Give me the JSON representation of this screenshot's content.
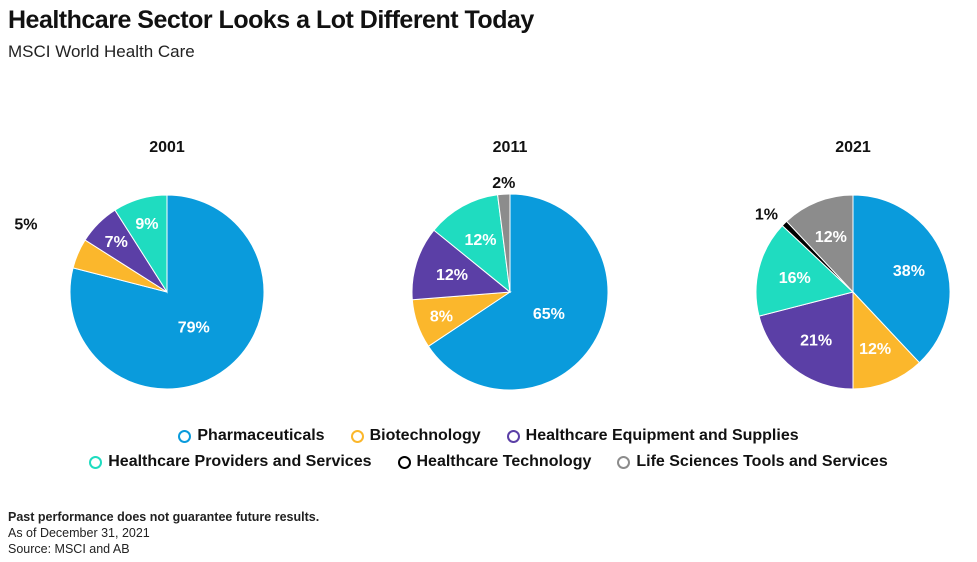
{
  "header": {
    "title": "Healthcare Sector Looks a Lot Different Today",
    "subtitle": "MSCI World Health Care"
  },
  "legend": {
    "row1": [
      {
        "label": "Pharmaceuticals",
        "color": "#0a9bdc"
      },
      {
        "label": "Biotechnology",
        "color": "#fbb72c"
      },
      {
        "label": "Healthcare Equipment and Supplies",
        "color": "#5b3fa6"
      }
    ],
    "row2": [
      {
        "label": "Healthcare Providers and Services",
        "color": "#1fdcc0"
      },
      {
        "label": "Healthcare Technology",
        "color": "#000000"
      },
      {
        "label": "Life Sciences Tools and Services",
        "color": "#8c8c8c"
      }
    ]
  },
  "footer": {
    "disclaimer": "Past performance does not guarantee future results.",
    "date": "As of December 31, 2021",
    "source": "Source: MSCI and AB"
  },
  "chart_data": [
    {
      "type": "pie",
      "title": "2001",
      "slices": [
        {
          "name": "Pharmaceuticals",
          "value": 79,
          "label": "79%",
          "color": "#0a9bdc"
        },
        {
          "name": "Biotechnology",
          "value": 5,
          "label": "5%",
          "color": "#fbb72c"
        },
        {
          "name": "Healthcare Equipment and Supplies",
          "value": 7,
          "label": "7%",
          "color": "#5b3fa6"
        },
        {
          "name": "Healthcare Providers and Services",
          "value": 9,
          "label": "9%",
          "color": "#1fdcc0"
        }
      ]
    },
    {
      "type": "pie",
      "title": "2011",
      "slices": [
        {
          "name": "Pharmaceuticals",
          "value": 65,
          "label": "65%",
          "color": "#0a9bdc"
        },
        {
          "name": "Biotechnology",
          "value": 8,
          "label": "8%",
          "color": "#fbb72c"
        },
        {
          "name": "Healthcare Equipment and Supplies",
          "value": 12,
          "label": "12%",
          "color": "#5b3fa6"
        },
        {
          "name": "Healthcare Providers and Services",
          "value": 12,
          "label": "12%",
          "color": "#1fdcc0"
        },
        {
          "name": "Life Sciences Tools and Services",
          "value": 2,
          "label": "2%",
          "color": "#8c8c8c"
        }
      ]
    },
    {
      "type": "pie",
      "title": "2021",
      "slices": [
        {
          "name": "Pharmaceuticals",
          "value": 38,
          "label": "38%",
          "color": "#0a9bdc"
        },
        {
          "name": "Biotechnology",
          "value": 12,
          "label": "12%",
          "color": "#fbb72c"
        },
        {
          "name": "Healthcare Equipment and Supplies",
          "value": 21,
          "label": "21%",
          "color": "#5b3fa6"
        },
        {
          "name": "Healthcare Providers and Services",
          "value": 16,
          "label": "16%",
          "color": "#1fdcc0"
        },
        {
          "name": "Healthcare Technology",
          "value": 1,
          "label": "1%",
          "color": "#000000"
        },
        {
          "name": "Life Sciences Tools and Services",
          "value": 12,
          "label": "12%",
          "color": "#8c8c8c"
        }
      ]
    }
  ]
}
